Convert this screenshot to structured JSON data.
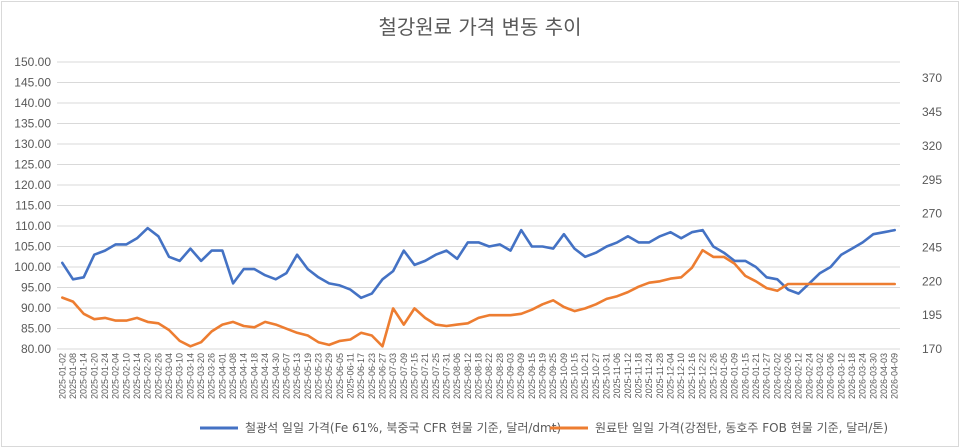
{
  "chart_data": {
    "type": "line",
    "title": "철강원료 가격 변동 추이",
    "left_axis": {
      "ylim": [
        80,
        150
      ],
      "ticks": [
        "150.00",
        "145.00",
        "140.00",
        "135.00",
        "130.00",
        "125.00",
        "120.00",
        "115.00",
        "110.00",
        "105.00",
        "100.00",
        "95.00",
        "90.00",
        "85.00",
        "80.00"
      ]
    },
    "right_axis": {
      "ylim": [
        170,
        382
      ],
      "ticks": [
        "370",
        "345",
        "320",
        "295",
        "270",
        "245",
        "220",
        "195",
        "170"
      ]
    },
    "x": [
      "2025-01-02",
      "2025-01-08",
      "2025-01-14",
      "2025-01-20",
      "2025-01-24",
      "2025-02-04",
      "2025-02-10",
      "2025-02-14",
      "2025-02-20",
      "2025-02-26",
      "2025-03-04",
      "2025-03-10",
      "2025-03-14",
      "2025-03-20",
      "2025-03-26",
      "2025-04-01",
      "2025-04-08",
      "2025-04-14",
      "2025-04-18",
      "2025-04-24",
      "2025-04-30",
      "2025-05-07",
      "2025-05-13",
      "2025-05-19",
      "2025-05-23",
      "2025-05-29",
      "2025-06-05",
      "2025-06-11",
      "2025-06-17",
      "2025-06-23",
      "2025-06-27",
      "2025-07-03",
      "2025-07-09",
      "2025-07-15",
      "2025-07-21",
      "2025-07-25",
      "2025-07-31",
      "2025-08-06",
      "2025-08-12",
      "2025-08-18",
      "2025-08-22",
      "2025-08-28",
      "2025-09-03",
      "2025-09-09",
      "2025-09-15",
      "2025-09-19",
      "2025-09-25",
      "2025-10-09",
      "2025-10-15",
      "2025-10-21",
      "2025-10-27",
      "2025-10-31",
      "2025-11-06",
      "2025-11-12",
      "2025-11-18",
      "2025-11-24",
      "2025-11-28",
      "2025-12-04",
      "2025-12-10",
      "2025-12-16",
      "2025-12-22",
      "2025-12-26",
      "2026-01-05",
      "2026-01-09",
      "2026-01-15",
      "2026-01-21",
      "2026-01-27",
      "2026-02-02",
      "2026-02-06",
      "2026-02-12",
      "2026-02-24",
      "2026-03-02",
      "2026-03-06",
      "2026-03-12",
      "2026-03-18",
      "2026-03-24",
      "2026-03-30",
      "2026-04-03",
      "2026-04-09"
    ],
    "series": [
      {
        "name": "철광석 일일 가격(Fe 61%, 북중국 CFR 현물 기준, 달러/dmt)",
        "axis": "left",
        "color": "#4472c4",
        "values": [
          101,
          97,
          97.5,
          103,
          104,
          105.5,
          105.5,
          107,
          109.5,
          107.5,
          102.5,
          101.5,
          104.5,
          101.5,
          104,
          104,
          96,
          99.5,
          99.5,
          98,
          97,
          98.5,
          103,
          99.5,
          97.5,
          96,
          95.5,
          94.5,
          92.5,
          93.5,
          97,
          99,
          104,
          100.5,
          101.5,
          103,
          104,
          102,
          106,
          106,
          105,
          105.5,
          104,
          109,
          105,
          105,
          104.5,
          108,
          104.5,
          102.5,
          103.5,
          105,
          106,
          107.5,
          106,
          106,
          107.5,
          108.5,
          107,
          108.5,
          109,
          105,
          103.5,
          101.5,
          101.5,
          100,
          97.5,
          97,
          94.5,
          93.5,
          96,
          98.5,
          100,
          103,
          104.5,
          106,
          108,
          108.5,
          109
        ]
      },
      {
        "name": "원료탄 일일 가격(강점탄, 동호주 FOB 현물 기준, 달러/톤)",
        "axis": "right",
        "color": "#ed7d31",
        "values": [
          208,
          205,
          196,
          192,
          193,
          191,
          191,
          193,
          190,
          189,
          184,
          176,
          172,
          175,
          183,
          188,
          190,
          187,
          186,
          190,
          188,
          185,
          182,
          180,
          175,
          173,
          176,
          177,
          182,
          180,
          172,
          200,
          188,
          200,
          193,
          188,
          187,
          188,
          189,
          193,
          195,
          195,
          195,
          196,
          199,
          203,
          206,
          201,
          198,
          200,
          203,
          207,
          209,
          212,
          216,
          219,
          220,
          222,
          223,
          230,
          243,
          238,
          238,
          233,
          224,
          220,
          215,
          213,
          218,
          218,
          218,
          218,
          218,
          218,
          218,
          218,
          218,
          218,
          218
        ]
      }
    ],
    "legend_position": "bottom",
    "grid": true
  }
}
